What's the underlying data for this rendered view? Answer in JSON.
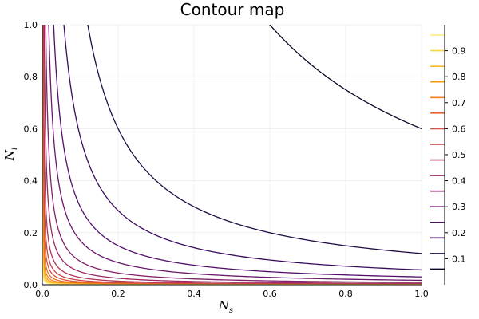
{
  "chart_data": {
    "type": "contour",
    "title": "Contour map",
    "xlabel": {
      "base": "N",
      "sub": "s"
    },
    "ylabel": {
      "base": "N",
      "sub": "i"
    },
    "xlim": [
      0,
      1
    ],
    "ylim": [
      0,
      1
    ],
    "x_ticks": [
      "0.0",
      "0.2",
      "0.4",
      "0.6",
      "0.8",
      "1.0"
    ],
    "y_ticks": [
      "0.0",
      "0.2",
      "0.4",
      "0.6",
      "0.8",
      "1.0"
    ],
    "grid": true,
    "colorbar": {
      "range": [
        0,
        1
      ],
      "ticks": [
        "0.1",
        "0.2",
        "0.3",
        "0.4",
        "0.5",
        "0.6",
        "0.7",
        "0.8",
        "0.9"
      ],
      "levels": [
        0.06,
        0.12,
        0.18,
        0.24,
        0.3,
        0.36,
        0.42,
        0.48,
        0.54,
        0.6,
        0.66,
        0.72,
        0.78,
        0.84,
        0.9,
        0.96
      ]
    },
    "colors": [
      "#000004",
      "#1b0c41",
      "#4a0c6b",
      "#781c6d",
      "#a52c60",
      "#cf4446",
      "#ed6925",
      "#fb9b06",
      "#f7d13d",
      "#fcffa4"
    ],
    "contour_constants": [
      0.6,
      0.12,
      0.057,
      0.03,
      0.017,
      0.009,
      0.005,
      0.0028,
      0.0017,
      0.0011,
      0.0007,
      0.00045,
      0.0003,
      0.0002,
      0.00013,
      8e-05
    ]
  }
}
